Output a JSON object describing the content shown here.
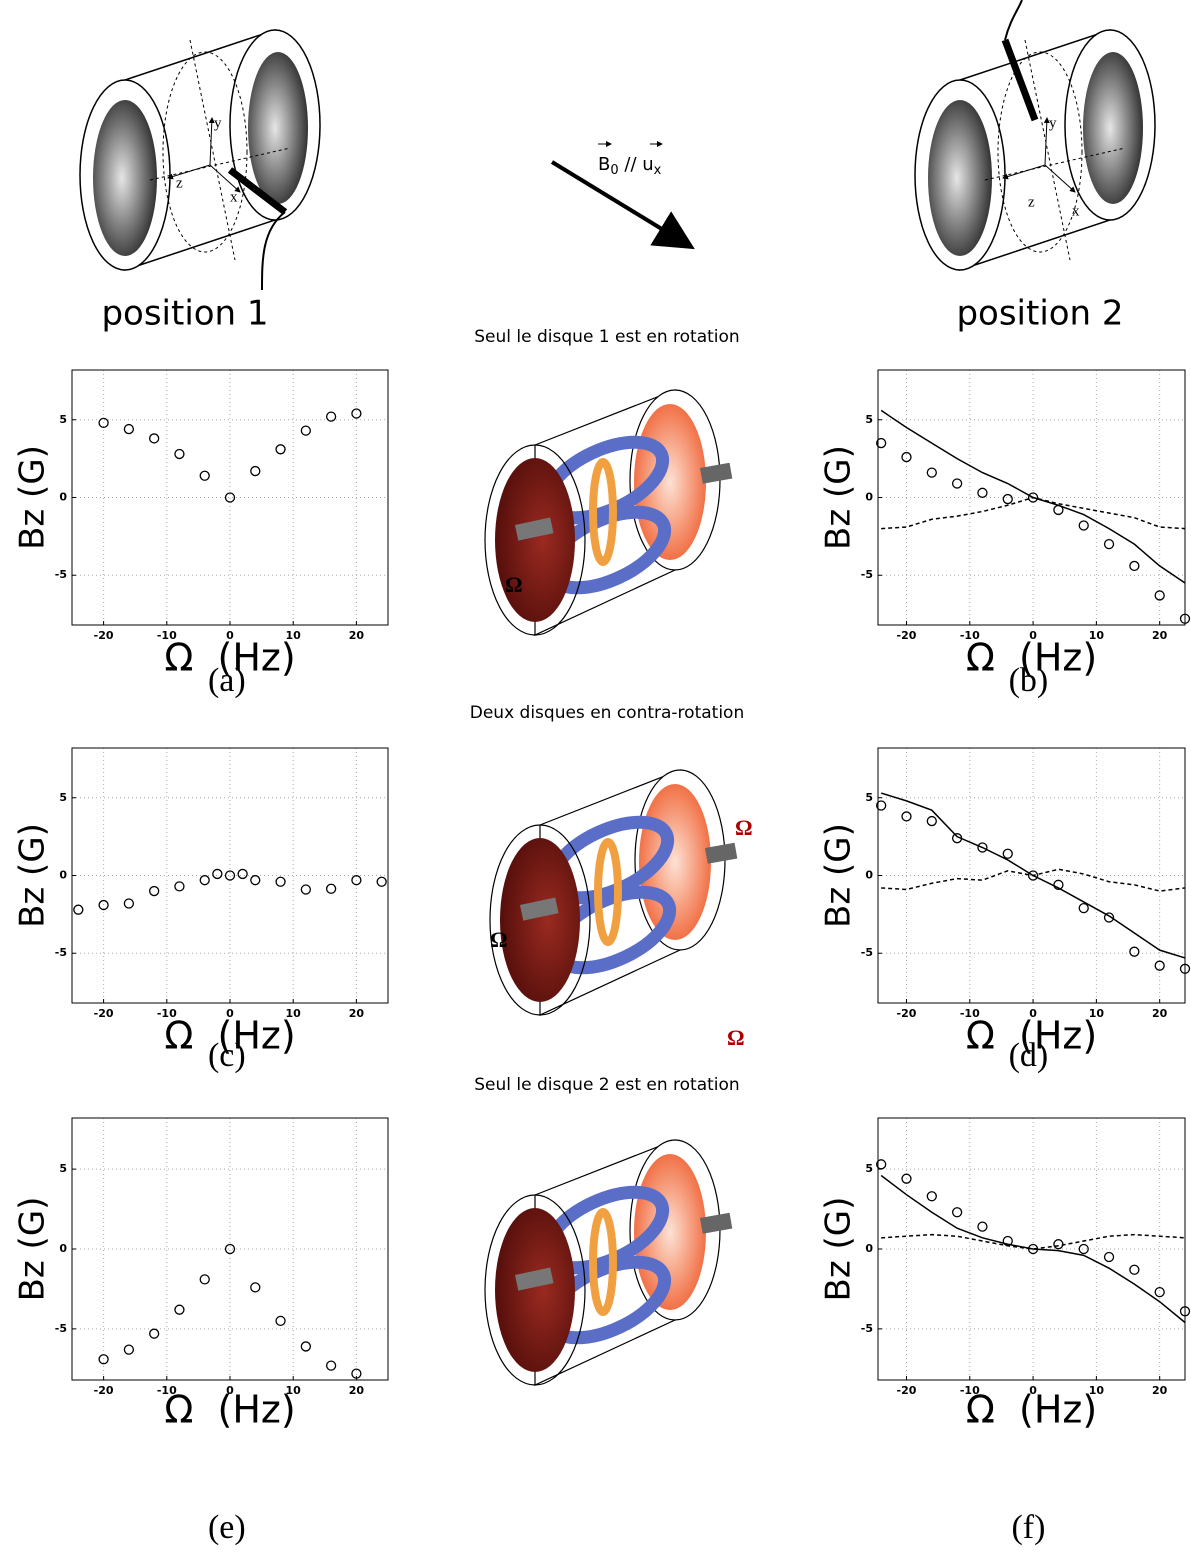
{
  "top": {
    "caption_left": "position 1",
    "caption_right": "position 2",
    "field": {
      "b": "B",
      "b_sub": "0",
      "sep": "//",
      "u": "u",
      "u_sub": "x"
    },
    "axes": {
      "x": "x",
      "y": "y",
      "z": "z"
    }
  },
  "rows": [
    "Seul le disque 1 est en rotation",
    "Deux disques en contra-rotation",
    "Seul le disque 2 est en rotation"
  ],
  "diagram_symbol": "Ω",
  "chart_data": [
    {
      "type": "scatter",
      "label": "(a)",
      "xlabel": "Ω  (Hz)",
      "ylabel": "Bz (G)",
      "xlim": [
        -25,
        25
      ],
      "ylim": [
        -8.2,
        8.2
      ],
      "xticks": [
        -20,
        -10,
        0,
        10,
        20
      ],
      "yticks": [
        -5,
        0,
        5
      ],
      "grid": true,
      "series": [
        {
          "marker": "circle",
          "color": "#000000",
          "x": [
            -20,
            -16,
            -12,
            -8,
            -4,
            0,
            4,
            8,
            12,
            16,
            20
          ],
          "values": [
            4.8,
            4.4,
            3.8,
            2.8,
            1.4,
            0,
            1.7,
            3.1,
            4.3,
            5.2,
            5.4
          ]
        }
      ]
    },
    {
      "type": "scatter",
      "label": "(b)",
      "xlabel": "Ω  (Hz)",
      "ylabel": "Bz (G)",
      "xlim": [
        -24.5,
        24
      ],
      "ylim": [
        -8.2,
        8.2
      ],
      "xticks": [
        -20,
        -10,
        0,
        10,
        20
      ],
      "yticks": [
        -5,
        0,
        5
      ],
      "grid": true,
      "series": [
        {
          "marker": "circle",
          "color": "#000000",
          "x": [
            -24,
            -20,
            -16,
            -12,
            -8,
            -4,
            0,
            4,
            8,
            12,
            16,
            20,
            24
          ],
          "values": [
            3.5,
            2.6,
            1.6,
            0.9,
            0.3,
            -0.1,
            0,
            -0.8,
            -1.8,
            -3,
            -4.4,
            -6.3,
            -7.8
          ]
        },
        {
          "line": "solid",
          "color": "#000000",
          "x": [
            -24,
            -20,
            -16,
            -12,
            -8,
            -4,
            0,
            4,
            8,
            12,
            16,
            20,
            24
          ],
          "values": [
            5.6,
            4.5,
            3.5,
            2.5,
            1.6,
            0.9,
            0,
            -0.5,
            -1.1,
            -2.0,
            -3.0,
            -4.4,
            -5.5
          ]
        },
        {
          "line": "dashed",
          "color": "#000000",
          "x": [
            -24,
            -20,
            -16,
            -12,
            -8,
            -4,
            0,
            4,
            8,
            12,
            16,
            20,
            24
          ],
          "values": [
            -2.0,
            -1.9,
            -1.4,
            -1.2,
            -0.9,
            -0.5,
            0,
            -0.4,
            -0.7,
            -1.0,
            -1.3,
            -1.9,
            -2.0
          ]
        }
      ]
    },
    {
      "type": "scatter",
      "label": "(c)",
      "xlabel": "Ω  (Hz)",
      "ylabel": "Bz (G)",
      "xlim": [
        -25,
        25
      ],
      "ylim": [
        -8.2,
        8.2
      ],
      "xticks": [
        -20,
        -10,
        0,
        10,
        20
      ],
      "yticks": [
        -5,
        0,
        5
      ],
      "grid": true,
      "series": [
        {
          "marker": "circle",
          "color": "#000000",
          "x": [
            -24,
            -20,
            -16,
            -12,
            -8,
            -4,
            -2,
            0,
            2,
            4,
            8,
            12,
            16,
            20,
            24
          ],
          "values": [
            -2.2,
            -1.9,
            -1.8,
            -1.0,
            -0.7,
            -0.3,
            0.1,
            0,
            0.1,
            -0.3,
            -0.4,
            -0.9,
            -0.85,
            -0.3,
            -0.4
          ]
        }
      ]
    },
    {
      "type": "scatter",
      "label": "(d)",
      "xlabel": "Ω  (Hz)",
      "ylabel": "Bz (G)",
      "xlim": [
        -24.5,
        24
      ],
      "ylim": [
        -8.2,
        8.2
      ],
      "xticks": [
        -20,
        -10,
        0,
        10,
        20
      ],
      "yticks": [
        -5,
        0,
        5
      ],
      "grid": true,
      "series": [
        {
          "marker": "circle",
          "color": "#000000",
          "x": [
            -24,
            -20,
            -16,
            -12,
            -8,
            -4,
            0,
            4,
            8,
            12,
            16,
            20,
            24
          ],
          "values": [
            4.5,
            3.8,
            3.5,
            2.4,
            1.8,
            1.4,
            0,
            -0.6,
            -2.1,
            -2.7,
            -4.9,
            -5.8,
            -6.0
          ]
        },
        {
          "line": "solid",
          "color": "#000000",
          "x": [
            -24,
            -20,
            -16,
            -12,
            -8,
            -4,
            0,
            4,
            8,
            12,
            16,
            20,
            24
          ],
          "values": [
            5.3,
            4.8,
            4.2,
            2.5,
            1.8,
            1.0,
            0,
            -0.8,
            -1.7,
            -2.6,
            -3.7,
            -4.8,
            -5.3
          ]
        },
        {
          "line": "dashed",
          "color": "#000000",
          "x": [
            -24,
            -20,
            -16,
            -12,
            -8,
            -4,
            0,
            4,
            8,
            12,
            16,
            20,
            24
          ],
          "values": [
            -0.8,
            -0.9,
            -0.5,
            -0.2,
            -0.3,
            0.3,
            0,
            0.4,
            0.1,
            -0.4,
            -0.6,
            -1.0,
            -0.8
          ]
        }
      ]
    },
    {
      "type": "scatter",
      "label": "(e)",
      "xlabel": "Ω  (Hz)",
      "ylabel": "Bz (G)",
      "xlim": [
        -25,
        25
      ],
      "ylim": [
        -8.2,
        8.2
      ],
      "xticks": [
        -20,
        -10,
        0,
        10,
        20
      ],
      "yticks": [
        -5,
        0,
        5
      ],
      "grid": true,
      "series": [
        {
          "marker": "circle",
          "color": "#000000",
          "x": [
            -20,
            -16,
            -12,
            -8,
            -4,
            0,
            4,
            8,
            12,
            16,
            20
          ],
          "values": [
            -6.9,
            -6.3,
            -5.3,
            -3.8,
            -1.9,
            0,
            -2.4,
            -4.5,
            -6.1,
            -7.3,
            -7.8
          ]
        }
      ]
    },
    {
      "type": "scatter",
      "label": "(f)",
      "xlabel": "Ω  (Hz)",
      "ylabel": "Bz (G)",
      "xlim": [
        -24.5,
        24
      ],
      "ylim": [
        -8.2,
        8.2
      ],
      "xticks": [
        -20,
        -10,
        0,
        10,
        20
      ],
      "yticks": [
        -5,
        0,
        5
      ],
      "grid": true,
      "series": [
        {
          "marker": "circle",
          "color": "#000000",
          "x": [
            -24,
            -20,
            -16,
            -12,
            -8,
            -4,
            0,
            4,
            8,
            12,
            16,
            20,
            24
          ],
          "values": [
            5.3,
            4.4,
            3.3,
            2.3,
            1.4,
            0.5,
            0,
            0.3,
            0,
            -0.5,
            -1.3,
            -2.7,
            -3.9
          ]
        },
        {
          "line": "solid",
          "color": "#000000",
          "x": [
            -24,
            -20,
            -16,
            -12,
            -8,
            -4,
            0,
            4,
            8,
            12,
            16,
            20,
            24
          ],
          "values": [
            4.6,
            3.4,
            2.3,
            1.3,
            0.7,
            0.3,
            0,
            -0.1,
            -0.4,
            -1.2,
            -2.2,
            -3.3,
            -4.6
          ]
        },
        {
          "line": "dashed",
          "color": "#000000",
          "x": [
            -24,
            -20,
            -16,
            -12,
            -8,
            -4,
            0,
            4,
            8,
            12,
            16,
            20,
            24
          ],
          "values": [
            0.7,
            0.8,
            0.9,
            0.8,
            0.5,
            0.2,
            0,
            0.2,
            0.5,
            0.8,
            0.9,
            0.8,
            0.7
          ]
        }
      ]
    }
  ]
}
